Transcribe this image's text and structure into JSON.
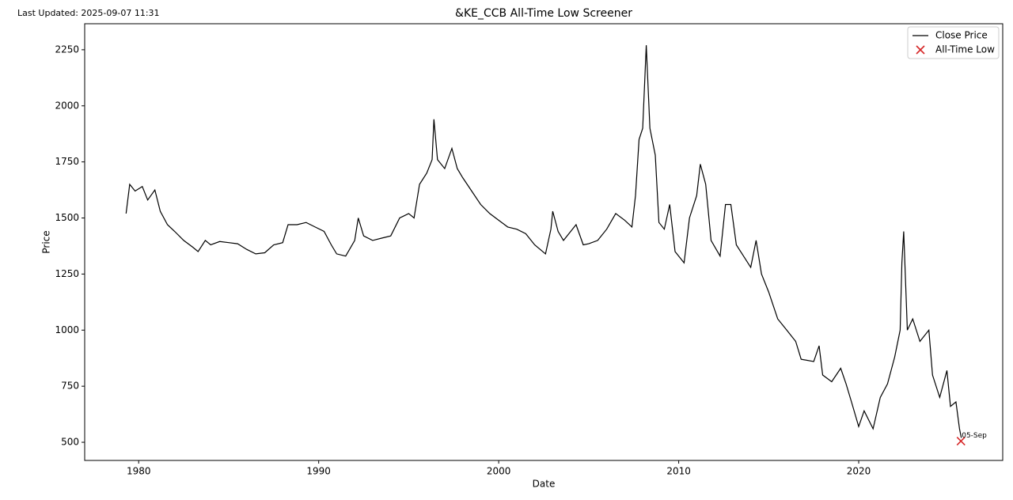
{
  "chart_data": {
    "type": "line",
    "title": "&KE_CCB All-Time Low Screener",
    "subtitle": "Last Updated: 2025-09-07 11:31",
    "x_label": "Date",
    "y_label": "Price",
    "xlim": [
      1977,
      2028
    ],
    "ylim": [
      419,
      2366
    ],
    "xticks": [
      1980,
      1990,
      2000,
      2010,
      2020
    ],
    "yticks": [
      500,
      750,
      1000,
      1250,
      1500,
      1750,
      2000,
      2250
    ],
    "legend": "upper right",
    "x": [
      1979.3,
      1979.5,
      1979.8,
      1980.2,
      1980.5,
      1980.9,
      1981.2,
      1981.6,
      1982.0,
      1982.5,
      1983.0,
      1983.3,
      1983.7,
      1984.0,
      1984.5,
      1985.0,
      1985.5,
      1986.0,
      1986.5,
      1987.0,
      1987.5,
      1988.0,
      1988.3,
      1988.8,
      1989.3,
      1989.8,
      1990.3,
      1990.7,
      1991.0,
      1991.5,
      1992.0,
      1992.2,
      1992.5,
      1993.0,
      1993.5,
      1994.0,
      1994.5,
      1995.0,
      1995.3,
      1995.6,
      1996.0,
      1996.3,
      1996.4,
      1996.6,
      1997.0,
      1997.4,
      1997.7,
      1998.0,
      1998.5,
      1999.0,
      1999.5,
      2000.0,
      2000.5,
      2001.0,
      2001.5,
      2002.0,
      2002.6,
      2002.9,
      2003.0,
      2003.3,
      2003.6,
      2004.0,
      2004.3,
      2004.7,
      2005.0,
      2005.5,
      2006.0,
      2006.5,
      2007.0,
      2007.4,
      2007.6,
      2007.8,
      2008.0,
      2008.2,
      2008.4,
      2008.7,
      2008.9,
      2009.2,
      2009.5,
      2009.8,
      2010.3,
      2010.6,
      2011.0,
      2011.2,
      2011.5,
      2011.8,
      2012.3,
      2012.6,
      2012.9,
      2013.2,
      2013.6,
      2014.0,
      2014.3,
      2014.6,
      2015.0,
      2015.5,
      2016.0,
      2016.5,
      2016.8,
      2017.5,
      2017.8,
      2018.0,
      2018.5,
      2019.0,
      2019.3,
      2019.6,
      2020.0,
      2020.3,
      2020.8,
      2021.2,
      2021.6,
      2022.0,
      2022.3,
      2022.4,
      2022.5,
      2022.7,
      2023.0,
      2023.4,
      2023.9,
      2024.1,
      2024.5,
      2024.9,
      2025.1,
      2025.4,
      2025.6,
      2025.7
    ],
    "series": [
      {
        "name": "Close Price",
        "color": "#000000",
        "values": [
          1520,
          1650,
          1620,
          1640,
          1580,
          1625,
          1530,
          1470,
          1440,
          1400,
          1370,
          1350,
          1400,
          1380,
          1395,
          1390,
          1385,
          1360,
          1340,
          1345,
          1380,
          1390,
          1470,
          1470,
          1480,
          1460,
          1440,
          1380,
          1340,
          1330,
          1400,
          1500,
          1420,
          1400,
          1410,
          1420,
          1500,
          1520,
          1500,
          1650,
          1700,
          1760,
          1940,
          1760,
          1720,
          1810,
          1720,
          1680,
          1620,
          1560,
          1520,
          1490,
          1460,
          1450,
          1430,
          1380,
          1340,
          1450,
          1530,
          1440,
          1400,
          1440,
          1470,
          1380,
          1385,
          1400,
          1450,
          1520,
          1490,
          1460,
          1600,
          1850,
          1900,
          2270,
          1900,
          1780,
          1480,
          1450,
          1560,
          1350,
          1300,
          1500,
          1600,
          1740,
          1650,
          1400,
          1330,
          1560,
          1560,
          1380,
          1330,
          1280,
          1400,
          1250,
          1170,
          1050,
          1000,
          950,
          870,
          860,
          930,
          800,
          770,
          830,
          760,
          680,
          570,
          640,
          560,
          700,
          760,
          880,
          1000,
          1300,
          1440,
          1000,
          1050,
          950,
          1000,
          800,
          700,
          820,
          660,
          680,
          560,
          520
        ]
      },
      {
        "name": "All-Time Low",
        "color": "#d62728",
        "marker": "x",
        "x": [
          2025.68
        ],
        "values": [
          505
        ],
        "value_labels": [
          "05-Sep"
        ]
      }
    ]
  }
}
